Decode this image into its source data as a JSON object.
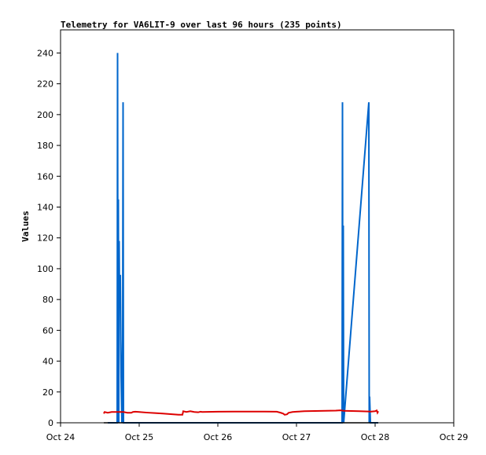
{
  "chart_data": {
    "type": "line",
    "title": "Telemetry for VA6LIT-9 over last 96 hours (235 points)",
    "xlabel": "",
    "ylabel": "Values",
    "xlim": [
      "Oct 24",
      "Oct 29"
    ],
    "ylim": [
      0,
      255
    ],
    "grid": false,
    "x_tick_labels": [
      "Oct 24",
      "Oct 25",
      "Oct 26",
      "Oct 27",
      "Oct 28",
      "Oct 29"
    ],
    "y_ticks": [
      0,
      20,
      40,
      60,
      80,
      100,
      120,
      140,
      160,
      180,
      200,
      220,
      240
    ],
    "series": [
      {
        "color": "#0066cc",
        "points": [
          [
            24.6,
            0
          ],
          [
            24.72,
            0
          ],
          [
            24.725,
            240
          ],
          [
            24.73,
            0
          ],
          [
            24.735,
            145
          ],
          [
            24.74,
            0
          ],
          [
            24.745,
            118
          ],
          [
            24.75,
            75
          ],
          [
            24.76,
            96
          ],
          [
            24.77,
            30
          ],
          [
            24.78,
            0
          ],
          [
            24.79,
            54
          ],
          [
            24.795,
            208
          ],
          [
            24.8,
            0
          ],
          [
            25.0,
            0
          ],
          [
            26.0,
            0
          ],
          [
            27.0,
            0
          ],
          [
            27.58,
            0
          ],
          [
            27.585,
            208
          ],
          [
            27.59,
            0
          ],
          [
            27.595,
            128
          ],
          [
            27.6,
            0
          ],
          [
            27.92,
            208
          ],
          [
            27.925,
            0
          ],
          [
            27.93,
            17
          ],
          [
            27.94,
            0
          ],
          [
            28.04,
            0
          ]
        ]
      },
      {
        "color": "#dd0000",
        "points": [
          [
            24.55,
            6
          ],
          [
            24.56,
            7
          ],
          [
            24.6,
            6.5
          ],
          [
            24.65,
            7
          ],
          [
            24.7,
            7
          ],
          [
            24.8,
            7
          ],
          [
            24.85,
            6.5
          ],
          [
            24.9,
            6.5
          ],
          [
            24.92,
            7
          ],
          [
            24.95,
            7.2
          ],
          [
            25.0,
            7
          ],
          [
            25.1,
            6.6
          ],
          [
            25.2,
            6.3
          ],
          [
            25.3,
            6
          ],
          [
            25.4,
            5.6
          ],
          [
            25.5,
            5.2
          ],
          [
            25.55,
            5.2
          ],
          [
            25.56,
            7.5
          ],
          [
            25.6,
            7
          ],
          [
            25.65,
            7.5
          ],
          [
            25.7,
            7
          ],
          [
            25.75,
            6.8
          ],
          [
            25.78,
            7.2
          ],
          [
            25.8,
            7
          ],
          [
            26.0,
            7.2
          ],
          [
            26.2,
            7.3
          ],
          [
            26.4,
            7.3
          ],
          [
            26.6,
            7.3
          ],
          [
            26.75,
            7.2
          ],
          [
            26.8,
            6.5
          ],
          [
            26.83,
            6
          ],
          [
            26.85,
            5.2
          ],
          [
            26.88,
            5.5
          ],
          [
            26.9,
            6.5
          ],
          [
            26.95,
            7
          ],
          [
            27.0,
            7.2
          ],
          [
            27.1,
            7.5
          ],
          [
            27.3,
            7.7
          ],
          [
            27.5,
            7.9
          ],
          [
            27.56,
            8.1
          ],
          [
            27.6,
            7.8
          ],
          [
            27.8,
            7.5
          ],
          [
            27.95,
            7.3
          ],
          [
            28.0,
            7.5
          ],
          [
            28.02,
            8
          ],
          [
            28.03,
            6.5
          ],
          [
            28.04,
            7.5
          ]
        ]
      },
      {
        "color": "#000000",
        "points": [
          [
            24.55,
            0
          ],
          [
            28.04,
            0
          ]
        ]
      }
    ]
  }
}
